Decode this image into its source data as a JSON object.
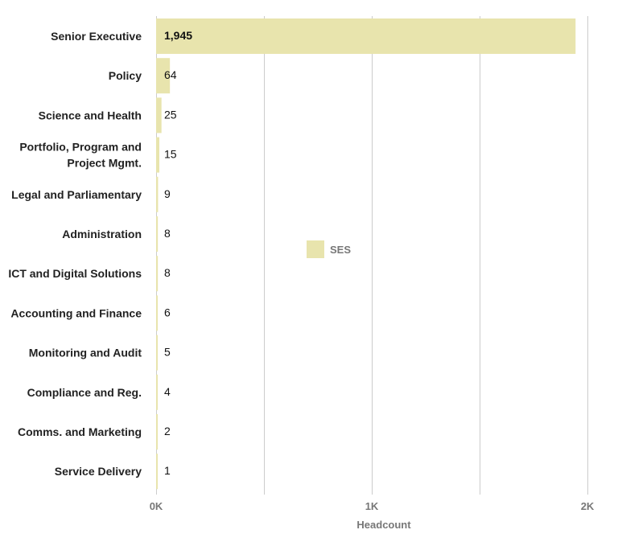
{
  "chart_data": {
    "type": "bar",
    "orientation": "horizontal",
    "categories": [
      "Senior Executive",
      "Policy",
      "Science and Health",
      "Portfolio, Program and Project Mgmt.",
      "Legal and Parliamentary",
      "Administration",
      "ICT and Digital Solutions",
      "Accounting and Finance",
      "Monitoring and Audit",
      "Compliance and Reg.",
      "Comms. and Marketing",
      "Service Delivery"
    ],
    "category_label_lines": [
      [
        "Senior Executive"
      ],
      [
        "Policy"
      ],
      [
        "Science and Health"
      ],
      [
        "Portfolio, Program and",
        "Project Mgmt."
      ],
      [
        "Legal and Parliamentary"
      ],
      [
        "Administration"
      ],
      [
        "ICT and Digital Solutions"
      ],
      [
        "Accounting and Finance"
      ],
      [
        "Monitoring and Audit"
      ],
      [
        "Compliance and Reg."
      ],
      [
        "Comms. and Marketing"
      ],
      [
        "Service Delivery"
      ]
    ],
    "series": [
      {
        "name": "SES",
        "values": [
          1945,
          64,
          25,
          15,
          9,
          8,
          8,
          6,
          5,
          4,
          2,
          1
        ],
        "value_labels": [
          "1,945",
          "64",
          "25",
          "15",
          "9",
          "8",
          "8",
          "6",
          "5",
          "4",
          "2",
          "1"
        ],
        "color": "#e8e4ad"
      }
    ],
    "xlabel": "Headcount",
    "xlim": [
      0,
      2000
    ],
    "xticks": [
      0,
      1000,
      2000
    ],
    "xtick_labels": [
      "0K",
      "1K",
      "2K"
    ],
    "minor_gridlines": [
      500,
      1500
    ],
    "grid": true,
    "legend": {
      "position": "center",
      "entries": [
        "SES"
      ]
    }
  }
}
